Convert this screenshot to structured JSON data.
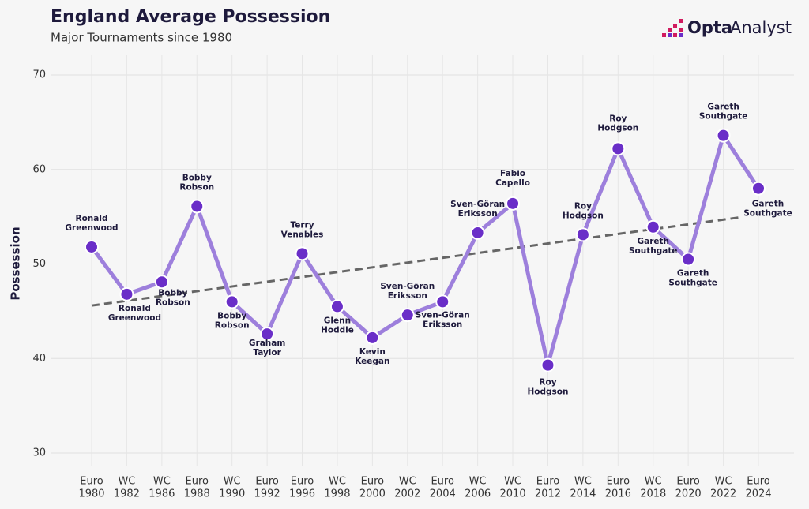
{
  "chart_data": {
    "type": "line",
    "title": "England Average Possession",
    "subtitle": "Major Tournaments since 1980",
    "brand": [
      "Opta",
      "Analyst"
    ],
    "y_label": "Possession",
    "categories": [
      [
        "Euro",
        "1980"
      ],
      [
        "WC",
        "1982"
      ],
      [
        "WC",
        "1986"
      ],
      [
        "Euro",
        "1988"
      ],
      [
        "WC",
        "1990"
      ],
      [
        "Euro",
        "1992"
      ],
      [
        "Euro",
        "1996"
      ],
      [
        "WC",
        "1998"
      ],
      [
        "Euro",
        "2000"
      ],
      [
        "WC",
        "2002"
      ],
      [
        "Euro",
        "2004"
      ],
      [
        "WC",
        "2006"
      ],
      [
        "WC",
        "2010"
      ],
      [
        "Euro",
        "2012"
      ],
      [
        "WC",
        "2014"
      ],
      [
        "Euro",
        "2016"
      ],
      [
        "WC",
        "2018"
      ],
      [
        "Euro",
        "2020"
      ],
      [
        "WC",
        "2022"
      ],
      [
        "Euro",
        "2024"
      ]
    ],
    "series": [
      {
        "name": "Possession",
        "color": "#9d7fdc",
        "marker_color": "#6a2ec8",
        "values": [
          51.8,
          46.8,
          48.1,
          56.1,
          46.0,
          42.6,
          51.1,
          45.5,
          42.2,
          44.6,
          46.0,
          53.3,
          56.4,
          39.3,
          53.1,
          62.2,
          53.9,
          50.5,
          63.6,
          58.0
        ]
      }
    ],
    "point_labels": [
      [
        "Ronald",
        "Greenwood"
      ],
      [
        "Ronald",
        "Greenwood"
      ],
      [
        "Bobby",
        "Robson"
      ],
      [
        "Bobby",
        "Robson"
      ],
      [
        "Bobby",
        "Robson"
      ],
      [
        "Graham",
        "Taylor"
      ],
      [
        "Terry",
        "Venables"
      ],
      [
        "Glenn",
        "Hoddle"
      ],
      [
        "Kevin",
        "Keegan"
      ],
      [
        "Sven-Göran",
        "Eriksson"
      ],
      [
        "Sven-Göran",
        "Eriksson"
      ],
      [
        "Sven-Göran",
        "Eriksson"
      ],
      [
        "Fabio",
        "Capello"
      ],
      [
        "Roy",
        "Hodgson"
      ],
      [
        "Roy",
        "Hodgson"
      ],
      [
        "Roy",
        "Hodgson"
      ],
      [
        "Gareth",
        "Southgate"
      ],
      [
        "Gareth",
        "Southgate"
      ],
      [
        "Gareth",
        "Southgate"
      ],
      [
        "Gareth",
        "Southgate"
      ]
    ],
    "trend": {
      "color": "#666666",
      "values": [
        45.6,
        55.2
      ]
    },
    "ylim": [
      30,
      70
    ],
    "yticks": [
      30,
      40,
      50,
      60,
      70
    ],
    "grid": true
  }
}
